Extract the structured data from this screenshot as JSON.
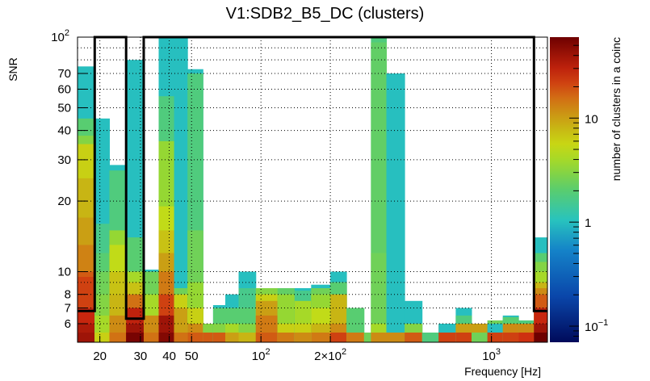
{
  "chart_data": {
    "type": "heatmap",
    "title": "V1:SDB2_B5_DC (clusters)",
    "xlabel": "Frequency [Hz]",
    "ylabel": "SNR",
    "zlabel": "number of clusters in a coinc",
    "xscale": "log",
    "yscale": "log",
    "zscale": "log",
    "xlim": [
      16,
      1750
    ],
    "ylim": [
      5,
      100
    ],
    "zlim": [
      0.07,
      60
    ],
    "grid": true,
    "x_ticks": [
      {
        "value": 20,
        "label": "20"
      },
      {
        "value": 30,
        "label": "30"
      },
      {
        "value": 40,
        "label": "40"
      },
      {
        "value": 50,
        "label": "50"
      },
      {
        "value": 100,
        "label": "10",
        "exp": "2"
      },
      {
        "value": 200,
        "label": "2×10",
        "exp": "2"
      },
      {
        "value": 1000,
        "label": "10",
        "exp": "3"
      }
    ],
    "y_ticks": [
      {
        "value": 6,
        "label": "6"
      },
      {
        "value": 7,
        "label": "7"
      },
      {
        "value": 8,
        "label": "8"
      },
      {
        "value": 10,
        "label": "10"
      },
      {
        "value": 20,
        "label": "20"
      },
      {
        "value": 30,
        "label": "30"
      },
      {
        "value": 40,
        "label": "40"
      },
      {
        "value": 50,
        "label": "50"
      },
      {
        "value": 60,
        "label": "60"
      },
      {
        "value": 70,
        "label": "70"
      },
      {
        "value": 100,
        "label": "10",
        "exp": "2"
      }
    ],
    "z_ticks": [
      {
        "value": 0.1,
        "label": "10",
        "exp": "−1"
      },
      {
        "value": 1,
        "label": "1"
      },
      {
        "value": 10,
        "label": "10"
      }
    ],
    "columns": [
      {
        "f0": 16,
        "f1": 19,
        "cells": [
          [
            5.5,
            40
          ],
          [
            6,
            35
          ],
          [
            7,
            28
          ],
          [
            9.5,
            22
          ],
          [
            10,
            18
          ],
          [
            13,
            13
          ],
          [
            17,
            10
          ],
          [
            25,
            8
          ],
          [
            35,
            6
          ],
          [
            38,
            3
          ],
          [
            45,
            2
          ],
          [
            75,
            1
          ]
        ]
      },
      {
        "f0": 19,
        "f1": 22,
        "cells": [
          [
            5.5,
            6
          ],
          [
            6.5,
            4
          ],
          [
            8,
            3
          ],
          [
            10,
            2.5
          ],
          [
            12,
            2
          ],
          [
            16,
            1.6
          ],
          [
            45,
            1
          ]
        ]
      },
      {
        "f0": 22,
        "f1": 26,
        "cells": [
          [
            5.5,
            15
          ],
          [
            6.5,
            12
          ],
          [
            8,
            8
          ],
          [
            10,
            7
          ],
          [
            13,
            5
          ],
          [
            15,
            3.5
          ],
          [
            27,
            1.8
          ],
          [
            28.5,
            1
          ]
        ]
      },
      {
        "f0": 26,
        "f1": 31,
        "cells": [
          [
            5.5,
            55
          ],
          [
            6,
            40
          ],
          [
            7,
            30
          ],
          [
            8,
            15
          ],
          [
            9,
            7
          ],
          [
            10,
            4
          ],
          [
            14,
            2
          ],
          [
            80,
            1
          ]
        ]
      },
      {
        "f0": 31,
        "f1": 36,
        "cells": [
          [
            5.5,
            15
          ],
          [
            6.5,
            12
          ],
          [
            8,
            4
          ],
          [
            10,
            2.5
          ],
          [
            10.2,
            1
          ]
        ]
      },
      {
        "f0": 36,
        "f1": 42,
        "cells": [
          [
            5.5,
            50
          ],
          [
            6.5,
            40
          ],
          [
            8,
            22
          ],
          [
            10,
            14
          ],
          [
            12,
            10
          ],
          [
            15,
            7
          ],
          [
            19,
            5
          ],
          [
            36,
            3.5
          ],
          [
            56,
            1.8
          ],
          [
            100,
            1
          ]
        ]
      },
      {
        "f0": 42,
        "f1": 48,
        "cells": [
          [
            5.5,
            15
          ],
          [
            7,
            10
          ],
          [
            8,
            6
          ],
          [
            8.5,
            2.5
          ],
          [
            100,
            1
          ]
        ]
      },
      {
        "f0": 48,
        "f1": 56,
        "cells": [
          [
            5.5,
            18
          ],
          [
            6,
            12
          ],
          [
            7,
            6
          ],
          [
            9,
            3.5
          ],
          [
            15,
            2.5
          ],
          [
            70,
            1.8
          ],
          [
            73,
            1
          ]
        ]
      },
      {
        "f0": 56,
        "f1": 62,
        "cells": [
          [
            5.5,
            18
          ],
          [
            6,
            3
          ]
        ]
      },
      {
        "f0": 62,
        "f1": 70,
        "cells": [
          [
            5.5,
            18
          ],
          [
            6,
            3
          ],
          [
            7,
            2
          ],
          [
            7.2,
            1
          ]
        ]
      },
      {
        "f0": 70,
        "f1": 80,
        "cells": [
          [
            5.5,
            10
          ],
          [
            6,
            4
          ],
          [
            7,
            2
          ],
          [
            8,
            1
          ]
        ]
      },
      {
        "f0": 80,
        "f1": 95,
        "cells": [
          [
            5.5,
            8
          ],
          [
            6,
            3
          ],
          [
            7,
            2
          ],
          [
            8.5,
            1.6
          ],
          [
            10,
            1
          ]
        ]
      },
      {
        "f0": 95,
        "f1": 118,
        "cells": [
          [
            5.5,
            18
          ],
          [
            6.5,
            14
          ],
          [
            7.5,
            10
          ],
          [
            8,
            6
          ],
          [
            8.5,
            3
          ]
        ]
      },
      {
        "f0": 118,
        "f1": 140,
        "cells": [
          [
            5.5,
            14
          ],
          [
            6,
            6
          ],
          [
            8,
            3.5
          ],
          [
            8.5,
            2.2
          ]
        ]
      },
      {
        "f0": 140,
        "f1": 165,
        "cells": [
          [
            5.5,
            12
          ],
          [
            6,
            6
          ],
          [
            7.5,
            4
          ],
          [
            8.3,
            1.6
          ],
          [
            8.5,
            1
          ]
        ]
      },
      {
        "f0": 165,
        "f1": 200,
        "cells": [
          [
            5.5,
            14
          ],
          [
            6,
            8
          ],
          [
            7,
            5
          ],
          [
            8,
            3.5
          ],
          [
            8.5,
            2.5
          ],
          [
            8.8,
            1
          ]
        ]
      },
      {
        "f0": 200,
        "f1": 235,
        "cells": [
          [
            5.5,
            22
          ],
          [
            6,
            12
          ],
          [
            8,
            8
          ],
          [
            9,
            3
          ],
          [
            9,
            2
          ],
          [
            10,
            1
          ]
        ]
      },
      {
        "f0": 235,
        "f1": 280,
        "cells": [
          [
            5.5,
            14
          ],
          [
            7,
            2
          ]
        ]
      },
      {
        "f0": 280,
        "f1": 300,
        "cells": [
          [
            5.5,
            14
          ],
          [
            5.5,
            2.5
          ]
        ]
      },
      {
        "f0": 300,
        "f1": 350,
        "cells": [
          [
            5.5,
            12
          ],
          [
            6,
            4
          ],
          [
            12,
            2.5
          ],
          [
            95,
            2.2
          ],
          [
            100,
            1.8
          ]
        ]
      },
      {
        "f0": 350,
        "f1": 420,
        "cells": [
          [
            5.5,
            12
          ],
          [
            70,
            1
          ]
        ]
      },
      {
        "f0": 420,
        "f1": 500,
        "cells": [
          [
            5.5,
            18
          ],
          [
            6,
            3
          ],
          [
            7.5,
            1
          ]
        ]
      },
      {
        "f0": 500,
        "f1": 590,
        "cells": [
          [
            5.5,
            12
          ],
          [
            5.5,
            1.8
          ]
        ]
      },
      {
        "f0": 590,
        "f1": 700,
        "cells": [
          [
            5.5,
            22
          ],
          [
            6,
            14
          ],
          [
            6,
            1
          ]
        ]
      },
      {
        "f0": 700,
        "f1": 820,
        "cells": [
          [
            5.5,
            22
          ],
          [
            6,
            10
          ],
          [
            6.5,
            1.8
          ],
          [
            7,
            1
          ]
        ]
      },
      {
        "f0": 820,
        "f1": 960,
        "cells": [
          [
            5.5,
            22
          ],
          [
            6,
            10
          ],
          [
            5.5,
            2.5
          ]
        ]
      },
      {
        "f0": 960,
        "f1": 1120,
        "cells": [
          [
            5.5,
            22
          ],
          [
            6,
            12
          ],
          [
            6.2,
            2.5
          ],
          [
            6,
            1
          ]
        ]
      },
      {
        "f0": 1120,
        "f1": 1310,
        "cells": [
          [
            5.5,
            22
          ],
          [
            6,
            12
          ],
          [
            6.4,
            2
          ],
          [
            6.5,
            1
          ]
        ]
      },
      {
        "f0": 1310,
        "f1": 1530,
        "cells": [
          [
            5.5,
            25
          ],
          [
            6,
            12
          ],
          [
            6.2,
            1.8
          ]
        ]
      },
      {
        "f0": 1530,
        "f1": 1750,
        "cells": [
          [
            5.5,
            60
          ],
          [
            6,
            40
          ],
          [
            7,
            28
          ],
          [
            8,
            18
          ],
          [
            8.5,
            12
          ],
          [
            9,
            8
          ],
          [
            10,
            4
          ],
          [
            11,
            3
          ],
          [
            12,
            2
          ],
          [
            14,
            1
          ]
        ]
      }
    ],
    "threshold_outline": [
      [
        16,
        6.8
      ],
      [
        19,
        6.8
      ],
      [
        19,
        100
      ],
      [
        26,
        100
      ],
      [
        26,
        6.3
      ],
      [
        31,
        6.3
      ],
      [
        31,
        100
      ],
      [
        1530,
        100
      ],
      [
        1530,
        6.8
      ],
      [
        1750,
        6.8
      ]
    ]
  }
}
